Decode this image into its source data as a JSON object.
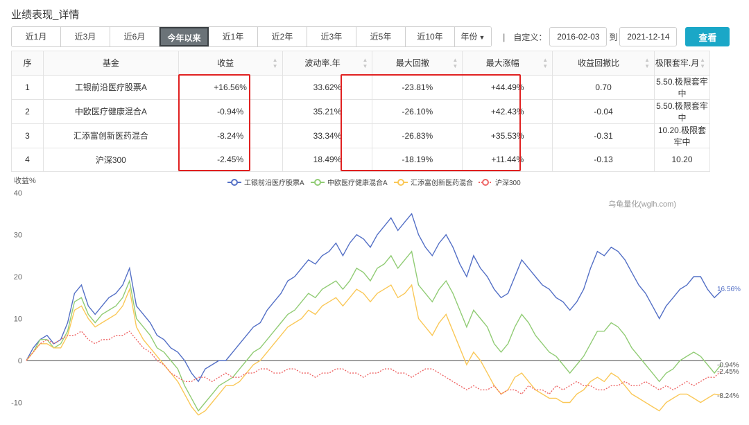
{
  "page_title": "业绩表现_详情",
  "periods": [
    "近1月",
    "近3月",
    "近6月",
    "今年以来",
    "近1年",
    "近2年",
    "近3年",
    "近5年",
    "近10年"
  ],
  "active_period": "今年以来",
  "year_dropdown": "年份",
  "separator": "|",
  "custom_label": "自定义：",
  "date_from": "2016-02-03",
  "to_label": "到",
  "date_to": "2021-12-14",
  "query_button": "查看",
  "table": {
    "headers": [
      "序",
      "基金",
      "收益",
      "波动率.年",
      "最大回撤",
      "最大涨幅",
      "收益回撤比",
      "极限套牢.月"
    ],
    "rows": [
      {
        "idx": "1",
        "name": "工银前沿医疗股票A",
        "ret": "+16.56%",
        "vol": "33.62%",
        "mdd": "-23.81%",
        "maxup": "+44.49%",
        "ratio": "0.70",
        "trap": "5.50.极限套牢中"
      },
      {
        "idx": "2",
        "name": "中欧医疗健康混合A",
        "ret": "-0.94%",
        "vol": "35.21%",
        "mdd": "-26.10%",
        "maxup": "+42.43%",
        "ratio": "-0.04",
        "trap": "5.50.极限套牢中"
      },
      {
        "idx": "3",
        "name": "汇添富创新医药混合",
        "ret": "-8.24%",
        "vol": "33.34%",
        "mdd": "-26.83%",
        "maxup": "+35.53%",
        "ratio": "-0.31",
        "trap": "10.20.极限套牢中"
      },
      {
        "idx": "4",
        "name": "沪深300",
        "ret": "-2.45%",
        "vol": "18.49%",
        "mdd": "-18.19%",
        "maxup": "+11.44%",
        "ratio": "-0.13",
        "trap": "10.20"
      }
    ]
  },
  "colors": {
    "accent": "#1aa7c7",
    "up": "#e43a3a",
    "down": "#3aa33a",
    "highlight": "#e02020"
  },
  "chart_data": {
    "type": "line",
    "ylabel": "收益%",
    "ylim": [
      -12,
      40
    ],
    "yticks": [
      40,
      30,
      20,
      10,
      0,
      -10
    ],
    "watermark": "乌龟量化(wglh.com)",
    "legend_position": "top-center",
    "end_labels": [
      "16.56%",
      "-0.94%",
      "-2.45%",
      "-8.24%"
    ],
    "series": [
      {
        "name": "工银前沿医疗股票A",
        "color": "#5470c6",
        "dash": false,
        "values": [
          0,
          3,
          5,
          6,
          4,
          5,
          9,
          16,
          18,
          13,
          11,
          13,
          15,
          16,
          18,
          22,
          13,
          11,
          9,
          6,
          5,
          3,
          2,
          0,
          -3,
          -5,
          -2,
          -1,
          0,
          0,
          2,
          4,
          6,
          8,
          9,
          12,
          14,
          16,
          19,
          20,
          22,
          24,
          23,
          25,
          26,
          28,
          25,
          28,
          30,
          29,
          27,
          30,
          32,
          34,
          31,
          33,
          35,
          30,
          27,
          25,
          28,
          30,
          27,
          23,
          20,
          25,
          22,
          20,
          17,
          15,
          16,
          20,
          24,
          22,
          20,
          18,
          17,
          15,
          14,
          12,
          14,
          17,
          22,
          26,
          25,
          27,
          26,
          24,
          21,
          18,
          16,
          13,
          10,
          13,
          15,
          17,
          18,
          20,
          20,
          17,
          15,
          16.56
        ]
      },
      {
        "name": "中欧医疗健康混合A",
        "color": "#91cc75",
        "dash": false,
        "values": [
          0,
          2,
          5,
          5,
          3,
          4,
          7,
          14,
          15,
          11,
          9,
          11,
          12,
          13,
          15,
          19,
          10,
          8,
          6,
          3,
          2,
          0,
          -2,
          -6,
          -9,
          -12,
          -10,
          -8,
          -6,
          -5,
          -4,
          -2,
          0,
          2,
          3,
          5,
          7,
          9,
          11,
          12,
          14,
          16,
          15,
          17,
          18,
          19,
          17,
          19,
          22,
          21,
          19,
          22,
          23,
          25,
          22,
          24,
          26,
          18,
          16,
          14,
          17,
          19,
          16,
          12,
          8,
          12,
          10,
          8,
          4,
          2,
          4,
          8,
          11,
          9,
          6,
          4,
          2,
          1,
          -1,
          -3,
          -1,
          1,
          4,
          7,
          7,
          9,
          8,
          6,
          3,
          1,
          -1,
          -3,
          -5,
          -3,
          -2,
          0,
          1,
          2,
          1,
          -1,
          -3,
          -0.94
        ]
      },
      {
        "name": "汇添富创新医药混合",
        "color": "#fac858",
        "dash": false,
        "values": [
          0,
          2,
          4,
          4,
          3,
          3,
          6,
          12,
          13,
          10,
          8,
          9,
          10,
          11,
          13,
          17,
          8,
          5,
          3,
          1,
          -1,
          -3,
          -5,
          -8,
          -11,
          -13,
          -12,
          -10,
          -8,
          -6,
          -6,
          -5,
          -3,
          -1,
          0,
          2,
          4,
          6,
          8,
          9,
          10,
          12,
          11,
          13,
          14,
          15,
          13,
          15,
          17,
          16,
          14,
          16,
          17,
          18,
          15,
          16,
          18,
          10,
          8,
          6,
          9,
          11,
          7,
          3,
          -1,
          2,
          0,
          -3,
          -6,
          -8,
          -7,
          -4,
          -3,
          -5,
          -7,
          -8,
          -9,
          -9,
          -10,
          -10,
          -8,
          -7,
          -5,
          -4,
          -5,
          -3,
          -4,
          -6,
          -8,
          -9,
          -10,
          -11,
          -12,
          -10,
          -9,
          -8,
          -8,
          -9,
          -10,
          -9,
          -8,
          -8.24
        ]
      },
      {
        "name": "沪深300",
        "color": "#ee6666",
        "dash": true,
        "values": [
          0,
          2,
          4,
          5,
          4,
          5,
          6,
          6,
          7,
          5,
          4,
          5,
          5,
          6,
          6,
          7,
          5,
          3,
          2,
          0,
          -1,
          -3,
          -4,
          -5,
          -5,
          -4,
          -4,
          -5,
          -4,
          -3,
          -4,
          -4,
          -3,
          -3,
          -2,
          -2,
          -3,
          -3,
          -2,
          -2,
          -3,
          -3,
          -4,
          -3,
          -3,
          -2,
          -2,
          -3,
          -3,
          -4,
          -3,
          -3,
          -2,
          -2,
          -3,
          -3,
          -4,
          -3,
          -2,
          -2,
          -3,
          -4,
          -5,
          -6,
          -7,
          -6,
          -7,
          -7,
          -6,
          -8,
          -7,
          -7,
          -8,
          -6,
          -7,
          -7,
          -8,
          -6,
          -7,
          -6,
          -5,
          -6,
          -6,
          -7,
          -7,
          -6,
          -6,
          -5,
          -6,
          -6,
          -5,
          -6,
          -7,
          -6,
          -7,
          -6,
          -5,
          -6,
          -5,
          -4,
          -4,
          -2.45
        ]
      }
    ]
  }
}
